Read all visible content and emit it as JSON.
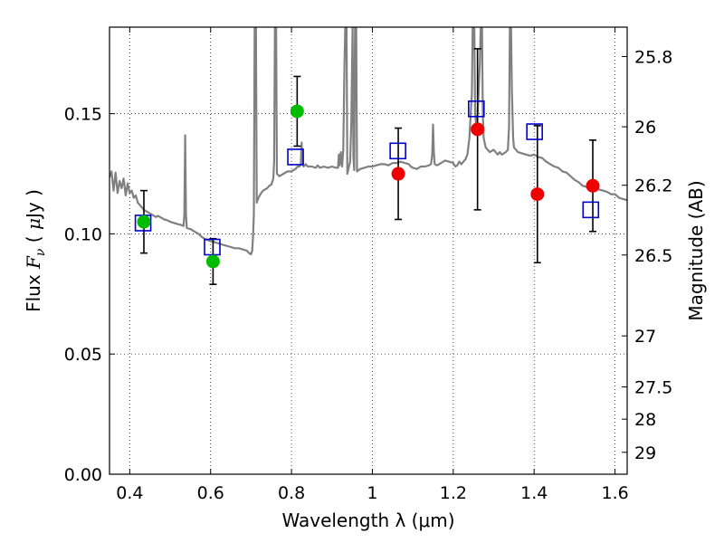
{
  "chart_data": {
    "type": "scatter",
    "title": "",
    "xlabel": "Wavelength  λ (μm)",
    "ylabel_parts": {
      "prefix": "Flux  ",
      "var": "F",
      "sub": "ν",
      "mid": "  ( ",
      "mu": "μ",
      "unit": "Jy )"
    },
    "y2label": "Magnitude (AB)",
    "xlim": [
      0.35,
      1.63
    ],
    "ylim": [
      0.0,
      0.186
    ],
    "grid": true,
    "x_ticks": [
      0.4,
      0.6,
      0.8,
      1.0,
      1.2,
      1.4,
      1.6
    ],
    "x_tick_labels": [
      "0.4",
      "0.6",
      "0.8",
      "1",
      "1.2",
      "1.4",
      "1.6"
    ],
    "y_ticks": [
      0.0,
      0.05,
      0.1,
      0.15
    ],
    "y_tick_labels": [
      "0.00",
      "0.05",
      "0.10",
      "0.15"
    ],
    "mag_ticks": [
      25.8,
      26,
      26.2,
      26.5,
      27,
      27.5,
      28,
      29
    ],
    "mag_tick_labels": [
      "25.8",
      "26",
      "26.2",
      "26.5",
      "27",
      "27.5",
      "28",
      "29"
    ],
    "series": [
      {
        "marker": "circle",
        "color": "#00bb00",
        "points": [
          {
            "x": 0.435,
            "y": 0.105,
            "err": 0.013
          },
          {
            "x": 0.606,
            "y": 0.0885,
            "err": 0.0095
          },
          {
            "x": 0.814,
            "y": 0.151,
            "err": 0.0145
          }
        ]
      },
      {
        "marker": "circle",
        "color": "#ee0000",
        "points": [
          {
            "x": 1.064,
            "y": 0.125,
            "err": 0.019
          },
          {
            "x": 1.26,
            "y": 0.1435,
            "err": 0.0335
          },
          {
            "x": 1.408,
            "y": 0.1165,
            "err": 0.0285
          },
          {
            "x": 1.545,
            "y": 0.12,
            "err": 0.019
          }
        ]
      },
      {
        "marker": "square",
        "color": "#0000cc",
        "points": [
          {
            "x": 0.433,
            "y": 0.1045
          },
          {
            "x": 0.604,
            "y": 0.0945
          },
          {
            "x": 0.81,
            "y": 0.132
          },
          {
            "x": 1.063,
            "y": 0.1345
          },
          {
            "x": 1.257,
            "y": 0.152
          },
          {
            "x": 1.401,
            "y": 0.1425
          },
          {
            "x": 1.54,
            "y": 0.11
          }
        ]
      }
    ],
    "model_spectrum": {
      "color": "#808080",
      "points": [
        [
          0.35,
          0.1235
        ],
        [
          0.355,
          0.126
        ],
        [
          0.36,
          0.118
        ],
        [
          0.365,
          0.1255
        ],
        [
          0.37,
          0.117
        ],
        [
          0.375,
          0.122
        ],
        [
          0.38,
          0.119
        ],
        [
          0.385,
          0.123
        ],
        [
          0.39,
          0.116
        ],
        [
          0.395,
          0.121
        ],
        [
          0.4,
          0.117
        ],
        [
          0.405,
          0.118
        ],
        [
          0.41,
          0.115
        ],
        [
          0.415,
          0.116
        ],
        [
          0.42,
          0.113
        ],
        [
          0.425,
          0.112
        ],
        [
          0.43,
          0.111
        ],
        [
          0.435,
          0.11
        ],
        [
          0.44,
          0.1095
        ],
        [
          0.445,
          0.109
        ],
        [
          0.45,
          0.1085
        ],
        [
          0.455,
          0.108
        ],
        [
          0.46,
          0.1075
        ],
        [
          0.465,
          0.107
        ],
        [
          0.47,
          0.1075
        ],
        [
          0.475,
          0.107
        ],
        [
          0.48,
          0.1065
        ],
        [
          0.485,
          0.106
        ],
        [
          0.49,
          0.1058
        ],
        [
          0.495,
          0.1055
        ],
        [
          0.5,
          0.105
        ],
        [
          0.505,
          0.1048
        ],
        [
          0.51,
          0.1045
        ],
        [
          0.515,
          0.1043
        ],
        [
          0.52,
          0.104
        ],
        [
          0.525,
          0.1038
        ],
        [
          0.53,
          0.1035
        ],
        [
          0.533,
          0.1033
        ],
        [
          0.535,
          0.108
        ],
        [
          0.537,
          0.141
        ],
        [
          0.539,
          0.108
        ],
        [
          0.541,
          0.1025
        ],
        [
          0.545,
          0.1022
        ],
        [
          0.55,
          0.102
        ],
        [
          0.56,
          0.101
        ],
        [
          0.57,
          0.1
        ],
        [
          0.58,
          0.0985
        ],
        [
          0.59,
          0.0975
        ],
        [
          0.6,
          0.097
        ],
        [
          0.61,
          0.0965
        ],
        [
          0.62,
          0.096
        ],
        [
          0.63,
          0.0955
        ],
        [
          0.64,
          0.095
        ],
        [
          0.65,
          0.0945
        ],
        [
          0.66,
          0.094
        ],
        [
          0.67,
          0.094
        ],
        [
          0.68,
          0.0935
        ],
        [
          0.69,
          0.093
        ],
        [
          0.695,
          0.092
        ],
        [
          0.7,
          0.0915
        ],
        [
          0.703,
          0.093
        ],
        [
          0.705,
          0.099
        ],
        [
          0.707,
          0.108
        ],
        [
          0.709,
          0.186
        ],
        [
          0.712,
          0.186
        ],
        [
          0.714,
          0.113
        ],
        [
          0.716,
          0.114
        ],
        [
          0.72,
          0.1155
        ],
        [
          0.725,
          0.117
        ],
        [
          0.73,
          0.118
        ],
        [
          0.735,
          0.1185
        ],
        [
          0.74,
          0.119
        ],
        [
          0.745,
          0.12
        ],
        [
          0.75,
          0.1205
        ],
        [
          0.755,
          0.123
        ],
        [
          0.757,
          0.13
        ],
        [
          0.759,
          0.186
        ],
        [
          0.762,
          0.186
        ],
        [
          0.764,
          0.125
        ],
        [
          0.77,
          0.124
        ],
        [
          0.78,
          0.125
        ],
        [
          0.79,
          0.126
        ],
        [
          0.8,
          0.126
        ],
        [
          0.81,
          0.127
        ],
        [
          0.815,
          0.128
        ],
        [
          0.82,
          0.128
        ],
        [
          0.823,
          0.129
        ],
        [
          0.825,
          0.138
        ],
        [
          0.827,
          0.129
        ],
        [
          0.83,
          0.128
        ],
        [
          0.835,
          0.129
        ],
        [
          0.84,
          0.128
        ],
        [
          0.85,
          0.128
        ],
        [
          0.86,
          0.1275
        ],
        [
          0.865,
          0.1285
        ],
        [
          0.87,
          0.1275
        ],
        [
          0.88,
          0.128
        ],
        [
          0.89,
          0.1275
        ],
        [
          0.9,
          0.128
        ],
        [
          0.91,
          0.1275
        ],
        [
          0.915,
          0.1275
        ],
        [
          0.917,
          0.133
        ],
        [
          0.919,
          0.1285
        ],
        [
          0.922,
          0.134
        ],
        [
          0.925,
          0.128
        ],
        [
          0.928,
          0.135
        ],
        [
          0.931,
          0.17
        ],
        [
          0.933,
          0.186
        ],
        [
          0.936,
          0.186
        ],
        [
          0.938,
          0.125
        ],
        [
          0.942,
          0.128
        ],
        [
          0.945,
          0.13
        ],
        [
          0.948,
          0.147
        ],
        [
          0.951,
          0.186
        ],
        [
          0.953,
          0.132
        ],
        [
          0.955,
          0.1265
        ],
        [
          0.957,
          0.186
        ],
        [
          0.96,
          0.186
        ],
        [
          0.962,
          0.126
        ],
        [
          0.97,
          0.127
        ],
        [
          0.98,
          0.1275
        ],
        [
          0.99,
          0.128
        ],
        [
          1.0,
          0.128
        ],
        [
          1.01,
          0.1285
        ],
        [
          1.02,
          0.129
        ],
        [
          1.03,
          0.129
        ],
        [
          1.04,
          0.1285
        ],
        [
          1.05,
          0.1295
        ],
        [
          1.06,
          0.1295
        ],
        [
          1.07,
          0.13
        ],
        [
          1.08,
          0.1295
        ],
        [
          1.09,
          0.129
        ],
        [
          1.095,
          0.128
        ],
        [
          1.1,
          0.1275
        ],
        [
          1.11,
          0.127
        ],
        [
          1.12,
          0.128
        ],
        [
          1.13,
          0.128
        ],
        [
          1.14,
          0.1285
        ],
        [
          1.145,
          0.129
        ],
        [
          1.148,
          0.133
        ],
        [
          1.15,
          0.1455
        ],
        [
          1.152,
          0.134
        ],
        [
          1.154,
          0.129
        ],
        [
          1.16,
          0.1285
        ],
        [
          1.17,
          0.1295
        ],
        [
          1.18,
          0.1305
        ],
        [
          1.19,
          0.13
        ],
        [
          1.2,
          0.1295
        ],
        [
          1.205,
          0.128
        ],
        [
          1.21,
          0.1285
        ],
        [
          1.215,
          0.13
        ],
        [
          1.22,
          0.129
        ],
        [
          1.225,
          0.13
        ],
        [
          1.23,
          0.131
        ],
        [
          1.235,
          0.133
        ],
        [
          1.24,
          0.14
        ],
        [
          1.243,
          0.15
        ],
        [
          1.246,
          0.158
        ],
        [
          1.248,
          0.186
        ],
        [
          1.252,
          0.186
        ],
        [
          1.254,
          0.15
        ],
        [
          1.257,
          0.145
        ],
        [
          1.26,
          0.15
        ],
        [
          1.263,
          0.16
        ],
        [
          1.266,
          0.172
        ],
        [
          1.268,
          0.186
        ],
        [
          1.271,
          0.186
        ],
        [
          1.273,
          0.15
        ],
        [
          1.275,
          0.14
        ],
        [
          1.28,
          0.136
        ],
        [
          1.29,
          0.134
        ],
        [
          1.3,
          0.135
        ],
        [
          1.31,
          0.133
        ],
        [
          1.315,
          0.134
        ],
        [
          1.32,
          0.133
        ],
        [
          1.325,
          0.1335
        ],
        [
          1.33,
          0.134
        ],
        [
          1.335,
          0.135
        ],
        [
          1.338,
          0.145
        ],
        [
          1.34,
          0.186
        ],
        [
          1.343,
          0.186
        ],
        [
          1.345,
          0.16
        ],
        [
          1.348,
          0.14
        ],
        [
          1.35,
          0.136
        ],
        [
          1.36,
          0.134
        ],
        [
          1.37,
          0.1335
        ],
        [
          1.38,
          0.133
        ],
        [
          1.39,
          0.1325
        ],
        [
          1.4,
          0.133
        ],
        [
          1.41,
          0.132
        ],
        [
          1.42,
          0.1315
        ],
        [
          1.43,
          0.13
        ],
        [
          1.44,
          0.129
        ],
        [
          1.45,
          0.128
        ],
        [
          1.46,
          0.1275
        ],
        [
          1.47,
          0.126
        ],
        [
          1.48,
          0.1255
        ],
        [
          1.49,
          0.124
        ],
        [
          1.5,
          0.1225
        ],
        [
          1.51,
          0.1215
        ],
        [
          1.52,
          0.12
        ],
        [
          1.53,
          0.1195
        ],
        [
          1.54,
          0.119
        ],
        [
          1.55,
          0.1185
        ],
        [
          1.56,
          0.1185
        ],
        [
          1.57,
          0.118
        ],
        [
          1.58,
          0.1175
        ],
        [
          1.59,
          0.1165
        ],
        [
          1.6,
          0.1165
        ],
        [
          1.61,
          0.115
        ],
        [
          1.62,
          0.1145
        ],
        [
          1.63,
          0.114
        ]
      ]
    }
  }
}
